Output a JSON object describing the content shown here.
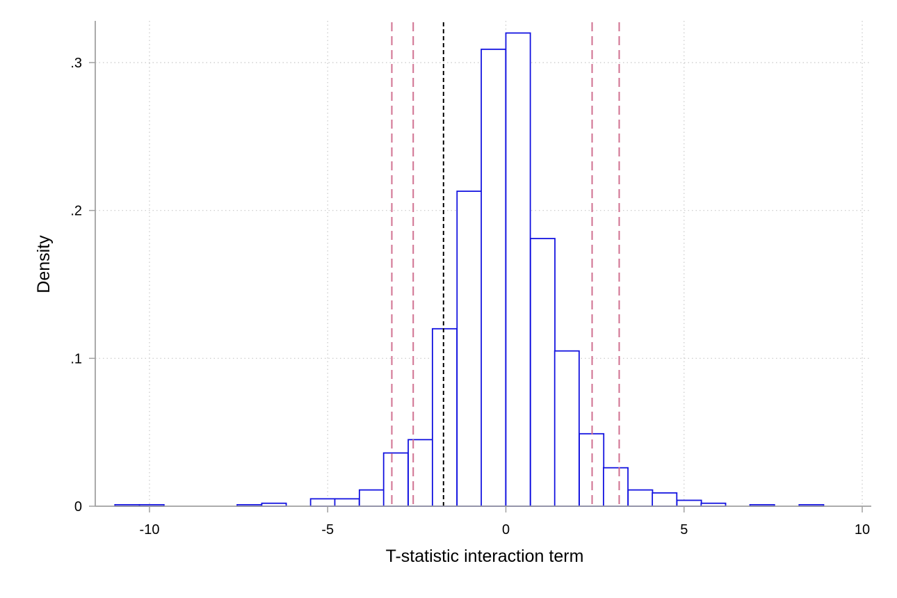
{
  "chart_data": {
    "type": "histogram",
    "xlabel": "T-statistic interaction term",
    "ylabel": "Density",
    "xlim": [
      -11.1,
      10.3
    ],
    "ylim": [
      0,
      0.33
    ],
    "x_ticks": [
      {
        "value": -10,
        "label": "-10"
      },
      {
        "value": -5,
        "label": "-5"
      },
      {
        "value": 0,
        "label": "0"
      },
      {
        "value": 5,
        "label": "5"
      },
      {
        "value": 10,
        "label": "10"
      }
    ],
    "y_ticks": [
      {
        "value": 0,
        "label": "0"
      },
      {
        "value": 0.1,
        "label": ".1"
      },
      {
        "value": 0.2,
        "label": ".2"
      },
      {
        "value": 0.3,
        "label": ".3"
      }
    ],
    "grid": true,
    "bin_width": 0.686,
    "bins": [
      {
        "start": -10.97,
        "density": 0.001
      },
      {
        "start": -10.28,
        "density": 0.001
      },
      {
        "start": -7.54,
        "density": 0.001
      },
      {
        "start": -6.85,
        "density": 0.002
      },
      {
        "start": -5.48,
        "density": 0.005
      },
      {
        "start": -4.8,
        "density": 0.005
      },
      {
        "start": -4.11,
        "density": 0.011
      },
      {
        "start": -3.43,
        "density": 0.036
      },
      {
        "start": -2.74,
        "density": 0.045
      },
      {
        "start": -2.06,
        "density": 0.12
      },
      {
        "start": -1.37,
        "density": 0.213
      },
      {
        "start": -0.69,
        "density": 0.309
      },
      {
        "start": 0.0,
        "density": 0.32
      },
      {
        "start": 0.69,
        "density": 0.181
      },
      {
        "start": 1.37,
        "density": 0.105
      },
      {
        "start": 2.06,
        "density": 0.049
      },
      {
        "start": 2.74,
        "density": 0.026
      },
      {
        "start": 3.43,
        "density": 0.011
      },
      {
        "start": 4.11,
        "density": 0.009
      },
      {
        "start": 4.8,
        "density": 0.004
      },
      {
        "start": 5.48,
        "density": 0.002
      },
      {
        "start": 6.85,
        "density": 0.001
      },
      {
        "start": 8.23,
        "density": 0.001
      }
    ],
    "reference_lines": [
      {
        "x": -3.2,
        "color": "#d07090",
        "style": "dashed"
      },
      {
        "x": -2.6,
        "color": "#d07090",
        "style": "dashed"
      },
      {
        "x": -1.75,
        "color": "#000000",
        "style": "dashed"
      },
      {
        "x": 2.42,
        "color": "#d07090",
        "style": "dashed"
      },
      {
        "x": 3.18,
        "color": "#d07090",
        "style": "dashed"
      }
    ],
    "colors": {
      "bar_stroke": "#1414e0",
      "bar_fill": "#ffffff",
      "grid": "#c8c8c8",
      "axis": "#a0a0a0"
    }
  }
}
